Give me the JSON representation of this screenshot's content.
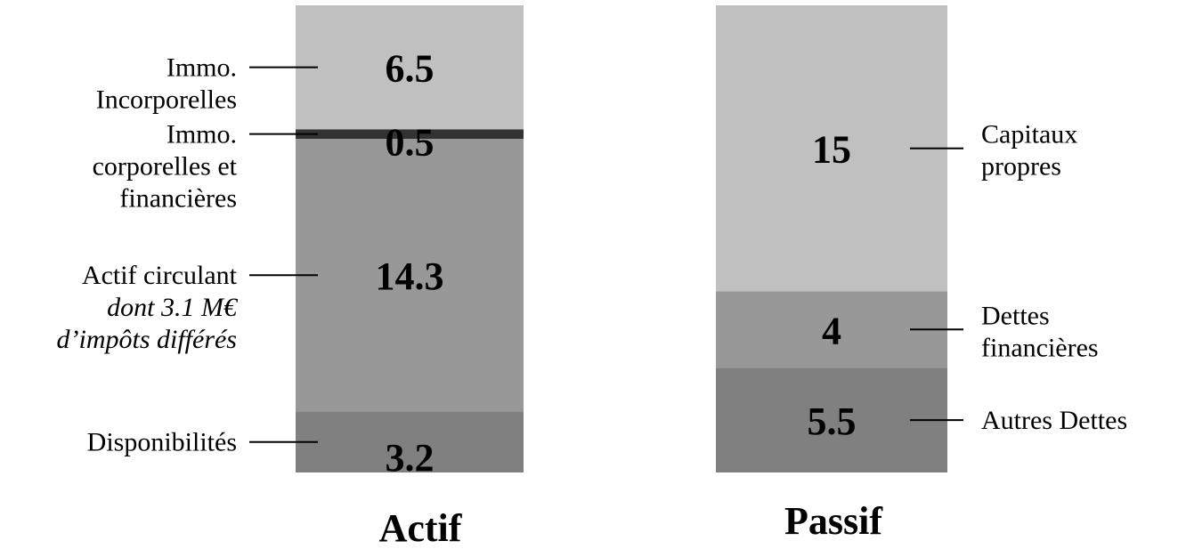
{
  "chart_data": {
    "type": "bar",
    "stacked": true,
    "categories": [
      "Actif",
      "Passif"
    ],
    "unit": "M€",
    "bars": [
      {
        "category": "Actif",
        "segments": [
          {
            "value": 3.2,
            "label": "3.2",
            "name_lines": [
              "Disponibilités"
            ],
            "color": "#808080"
          },
          {
            "value": 14.3,
            "label": "14.3",
            "name_lines": [
              "Actif circulant"
            ],
            "note_lines": [
              "dont 3.1 M€",
              "d’impôts différés"
            ],
            "color": "#989898"
          },
          {
            "value": 0.5,
            "label": "0.5",
            "name_lines": [
              "Immo.",
              "corporelles et",
              "financières"
            ],
            "color": "#333333"
          },
          {
            "value": 6.5,
            "label": "6.5",
            "name_lines": [
              "Immo.",
              "Incorporelles"
            ],
            "color": "#c0c0c0"
          }
        ]
      },
      {
        "category": "Passif",
        "segments": [
          {
            "value": 5.5,
            "label": "5.5",
            "name_lines": [
              "Autres Dettes"
            ],
            "color": "#808080"
          },
          {
            "value": 4,
            "label": "4",
            "name_lines": [
              "Dettes",
              "financières"
            ],
            "color": "#989898"
          },
          {
            "value": 15,
            "label": "15",
            "name_lines": [
              "Capitaux",
              "propres"
            ],
            "color": "#c0c0c0"
          }
        ]
      }
    ]
  }
}
